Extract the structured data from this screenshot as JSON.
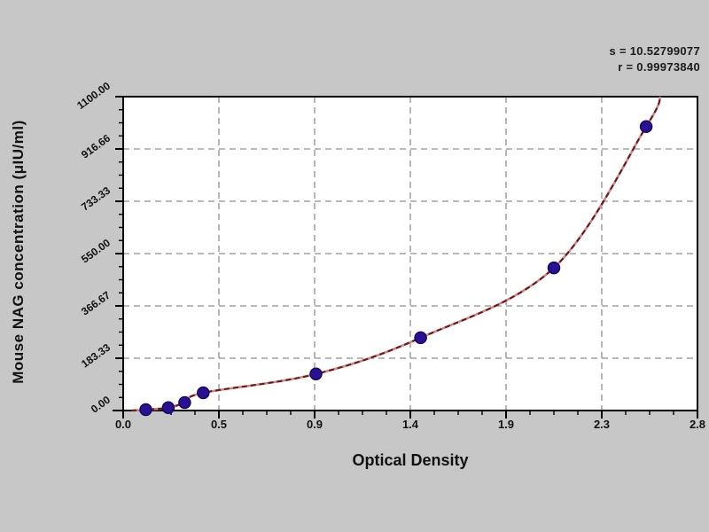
{
  "page": {
    "background_color": "#c7c7c7",
    "plot_background_color": "#ffffff",
    "axis_color": "#000000",
    "grid_color": "#8f8f8f"
  },
  "annotations": {
    "s_label": "s = 10.52799077",
    "r_label": "r = 0.99973840"
  },
  "chart_data": {
    "type": "scatter",
    "title": "",
    "xlabel": "Optical Density",
    "ylabel": "Mouse NAG concentration (μIU/ml)",
    "xlim": [
      0,
      2.8
    ],
    "ylim": [
      0,
      1100
    ],
    "grid": "dashed lines at major ticks, both axes",
    "legend_position": "none",
    "x_ticks": [
      {
        "value": 0.0,
        "label": "0.0"
      },
      {
        "value": 0.4667,
        "label": "0.5"
      },
      {
        "value": 0.9333,
        "label": "0.9"
      },
      {
        "value": 1.4,
        "label": "1.4"
      },
      {
        "value": 1.8667,
        "label": "1.9"
      },
      {
        "value": 2.3333,
        "label": "2.3"
      },
      {
        "value": 2.8,
        "label": "2.8"
      }
    ],
    "y_ticks": [
      {
        "value": 0,
        "label": "0.00"
      },
      {
        "value": 183.33,
        "label": "183.33"
      },
      {
        "value": 366.67,
        "label": "366.67"
      },
      {
        "value": 550,
        "label": "550.00"
      },
      {
        "value": 733.33,
        "label": "733.33"
      },
      {
        "value": 916.66,
        "label": "916.66"
      },
      {
        "value": 1100,
        "label": "1100.00"
      }
    ],
    "series": [
      {
        "name": "standard-points",
        "type": "scatter",
        "marker_color": "#2a1193",
        "marker_edge_color": "#150763",
        "points": [
          [
            0.11,
            3
          ],
          [
            0.22,
            10
          ],
          [
            0.3,
            28
          ],
          [
            0.39,
            62
          ],
          [
            0.94,
            128
          ],
          [
            1.45,
            255
          ],
          [
            2.1,
            500
          ],
          [
            2.55,
            995
          ]
        ]
      },
      {
        "name": "fitted-curve",
        "type": "line",
        "color": "#6e1414",
        "underlay_color": "#cc8888",
        "points": [
          [
            0.04,
            0
          ],
          [
            0.11,
            3
          ],
          [
            0.22,
            10
          ],
          [
            0.3,
            28
          ],
          [
            0.39,
            62
          ],
          [
            0.94,
            128
          ],
          [
            1.45,
            255
          ],
          [
            2.1,
            500
          ],
          [
            2.55,
            995
          ],
          [
            2.62,
            1100
          ]
        ]
      }
    ],
    "fit_stats": {
      "s": "10.52799077",
      "r": "0.99973840"
    }
  }
}
